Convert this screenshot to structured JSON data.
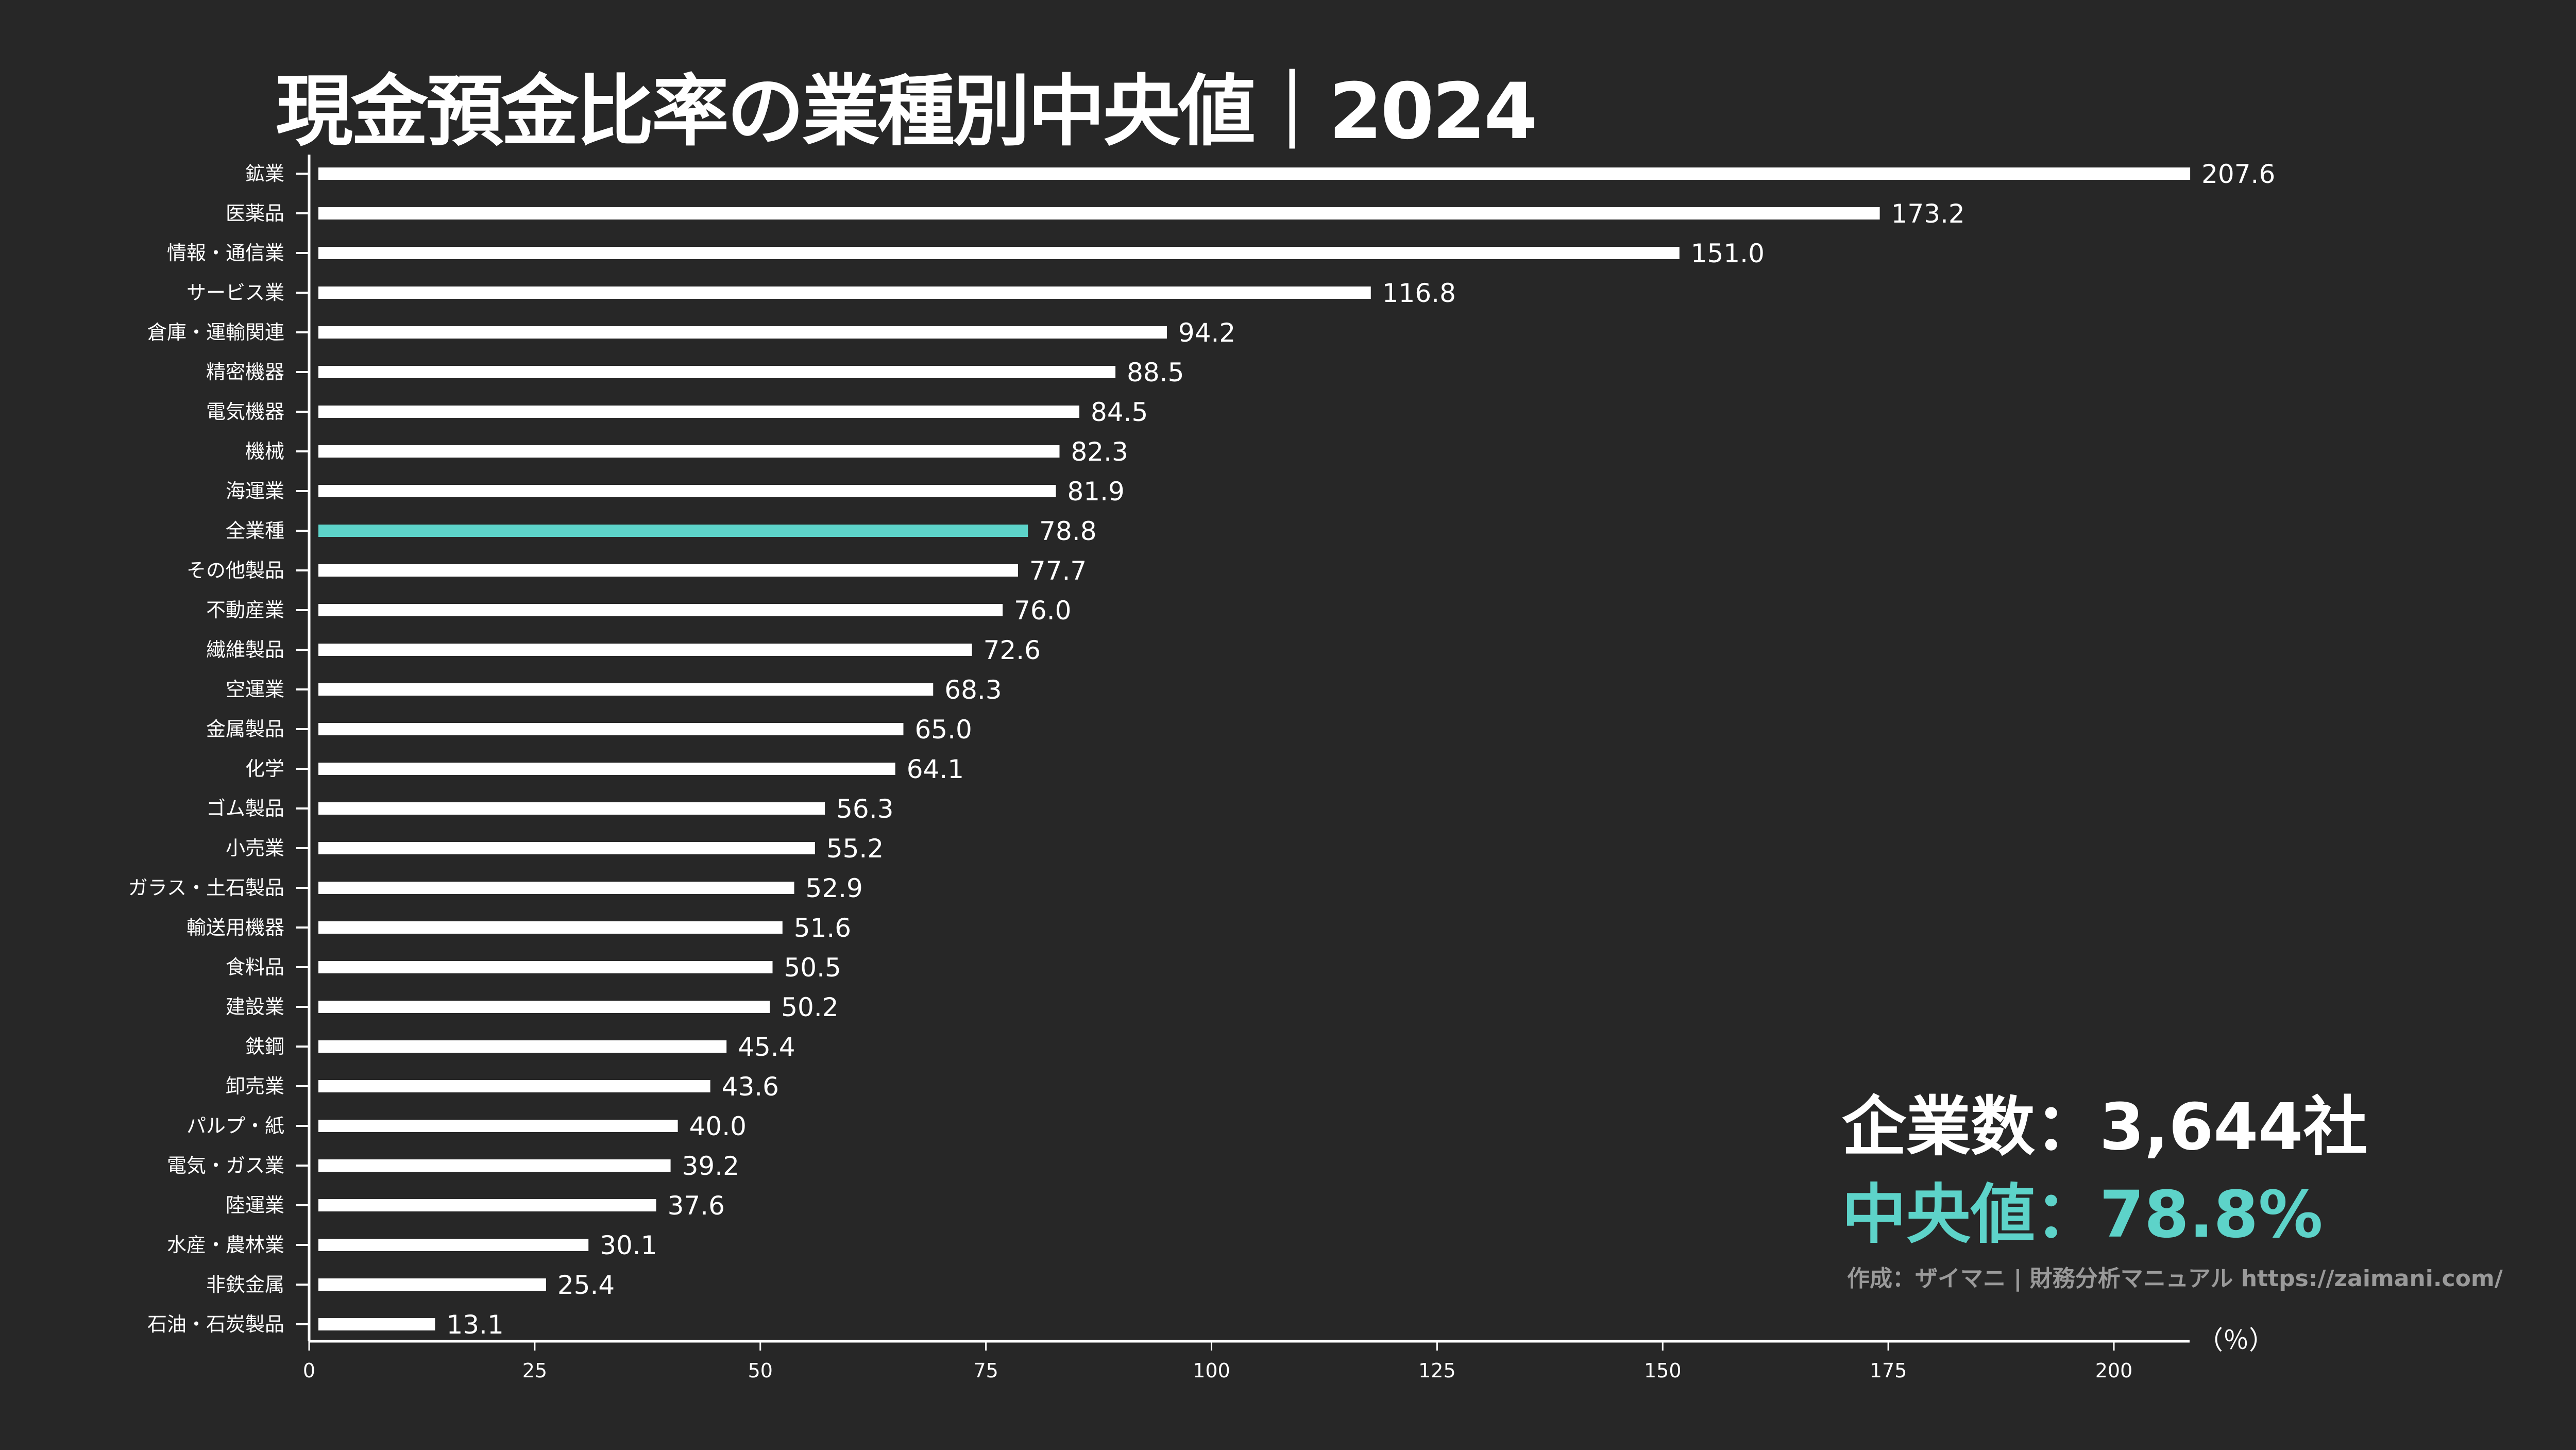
{
  "title": "現金預金比率の業種別中央値｜2024",
  "colors": {
    "background": "#272727",
    "bar": "#ffffff",
    "highlight": "#5dd3c9",
    "credit": "#9a9a9a"
  },
  "stats": {
    "company_count": "企業数：3,644社",
    "median": "中央値：78.8%"
  },
  "credit": "作成：ザイマニ | 財務分析マニュアル https://zaimani.com/",
  "chart_data": {
    "type": "bar",
    "orientation": "horizontal",
    "title": "現金預金比率の業種別中央値｜2024",
    "xlabel": "（％）",
    "ylabel": "",
    "xlim": [
      0,
      210
    ],
    "xticks": [
      0,
      25,
      50,
      75,
      100,
      125,
      150,
      175,
      200
    ],
    "grid": false,
    "highlight_category": "全業種",
    "categories": [
      "鉱業",
      "医薬品",
      "情報・通信業",
      "サービス業",
      "倉庫・運輸関連",
      "精密機器",
      "電気機器",
      "機械",
      "海運業",
      "全業種",
      "その他製品",
      "不動産業",
      "繊維製品",
      "空運業",
      "金属製品",
      "化学",
      "ゴム製品",
      "小売業",
      "ガラス・土石製品",
      "輸送用機器",
      "食料品",
      "建設業",
      "鉄鋼",
      "卸売業",
      "パルプ・紙",
      "電気・ガス業",
      "陸運業",
      "水産・農林業",
      "非鉄金属",
      "石油・石炭製品"
    ],
    "values": [
      207.6,
      173.2,
      151.0,
      116.8,
      94.2,
      88.5,
      84.5,
      82.3,
      81.9,
      78.8,
      77.7,
      76.0,
      72.6,
      68.3,
      65.0,
      64.1,
      56.3,
      55.2,
      52.9,
      51.6,
      50.5,
      50.2,
      45.4,
      43.6,
      40.0,
      39.2,
      37.6,
      30.1,
      25.4,
      13.1
    ]
  }
}
